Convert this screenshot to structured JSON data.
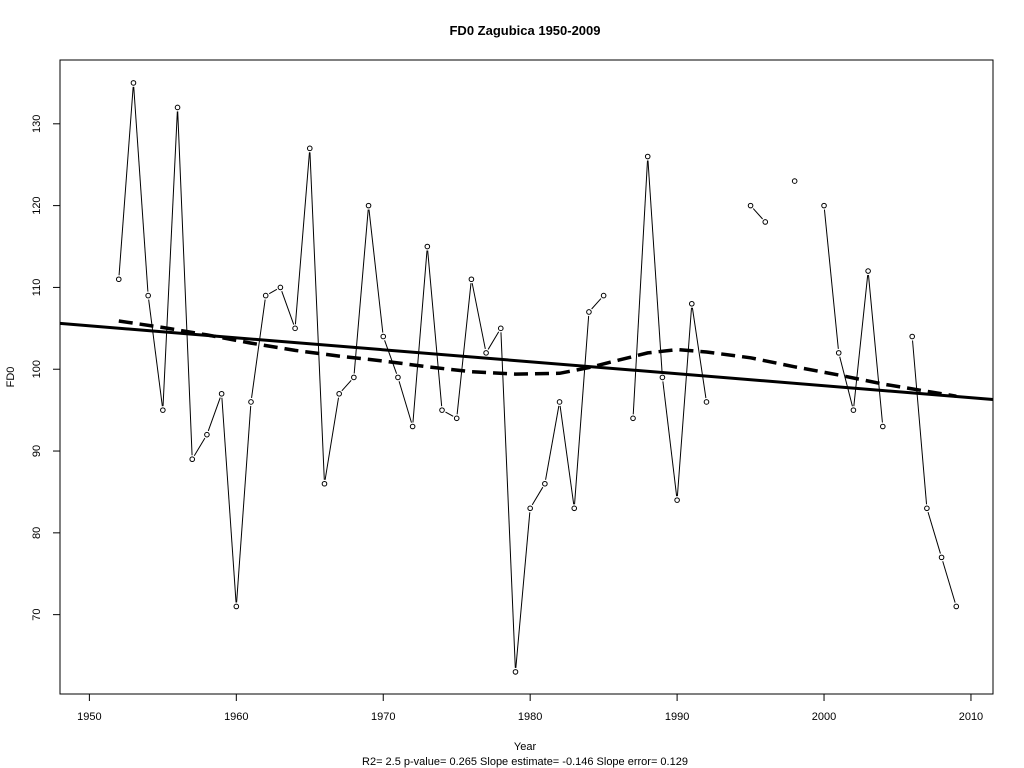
{
  "chart_data": {
    "type": "line",
    "title": "FD0   Zagubica 1950-2009",
    "xlabel": "Year",
    "ylabel": "FD0",
    "subtitle": "R2= 2.5  p-value= 0.265  Slope estimate= -0.146  Slope error= 0.129",
    "xlim": [
      1948,
      2011.5
    ],
    "ylim": [
      60.3,
      137.8
    ],
    "xticks": [
      1950,
      1960,
      1970,
      1980,
      1990,
      2000,
      2010
    ],
    "yticks": [
      70,
      80,
      90,
      100,
      110,
      120,
      130
    ],
    "grid": false,
    "series": [
      {
        "kind": "observed",
        "points": [
          [
            1952,
            111
          ],
          [
            1953,
            135
          ],
          [
            1954,
            109
          ],
          [
            1955,
            95
          ],
          [
            1956,
            132
          ],
          [
            1957,
            89
          ],
          [
            1958,
            92
          ],
          [
            1959,
            97
          ],
          [
            1960,
            71
          ],
          [
            1961,
            96
          ],
          [
            1962,
            109
          ],
          [
            1963,
            110
          ],
          [
            1964,
            105
          ],
          [
            1965,
            127
          ],
          [
            1966,
            86
          ],
          [
            1967,
            97
          ],
          [
            1968,
            99
          ],
          [
            1969,
            120
          ],
          [
            1970,
            104
          ],
          [
            1971,
            99
          ],
          [
            1972,
            93
          ],
          [
            1973,
            115
          ],
          [
            1974,
            95
          ],
          [
            1975,
            94
          ],
          [
            1976,
            111
          ],
          [
            1977,
            102
          ],
          [
            1978,
            105
          ],
          [
            1979,
            63
          ],
          [
            1980,
            83
          ],
          [
            1981,
            86
          ],
          [
            1982,
            96
          ],
          [
            1983,
            83
          ],
          [
            1984,
            107
          ],
          [
            1985,
            109
          ],
          [
            1986,
            null
          ],
          [
            1987,
            94
          ],
          [
            1988,
            126
          ],
          [
            1989,
            99
          ],
          [
            1990,
            84
          ],
          [
            1991,
            108
          ],
          [
            1992,
            96
          ],
          [
            1993,
            null
          ],
          [
            1994,
            null
          ],
          [
            1995,
            120
          ],
          [
            1996,
            118
          ],
          [
            1997,
            null
          ],
          [
            1998,
            123
          ],
          [
            1999,
            null
          ],
          [
            2000,
            120
          ],
          [
            2001,
            102
          ],
          [
            2002,
            95
          ],
          [
            2003,
            112
          ],
          [
            2004,
            93
          ],
          [
            2005,
            null
          ],
          [
            2006,
            104
          ],
          [
            2007,
            83
          ],
          [
            2008,
            77
          ],
          [
            2009,
            71
          ]
        ]
      },
      {
        "kind": "linear-trend",
        "points": [
          [
            1948,
            105.6
          ],
          [
            2011.5,
            96.3
          ]
        ]
      },
      {
        "kind": "smoothed",
        "points": [
          [
            1952,
            105.9
          ],
          [
            1955,
            105.1
          ],
          [
            1958,
            104.2
          ],
          [
            1961,
            103.2
          ],
          [
            1964,
            102.3
          ],
          [
            1967,
            101.6
          ],
          [
            1970,
            101.0
          ],
          [
            1973,
            100.3
          ],
          [
            1976,
            99.7
          ],
          [
            1979,
            99.4
          ],
          [
            1982,
            99.5
          ],
          [
            1984,
            100.2
          ],
          [
            1986,
            101.1
          ],
          [
            1988,
            102.0
          ],
          [
            1990,
            102.4
          ],
          [
            1992,
            102.1
          ],
          [
            1995,
            101.4
          ],
          [
            1998,
            100.3
          ],
          [
            2001,
            99.3
          ],
          [
            2004,
            98.2
          ],
          [
            2007,
            97.3
          ],
          [
            2009,
            96.7
          ]
        ]
      }
    ]
  }
}
